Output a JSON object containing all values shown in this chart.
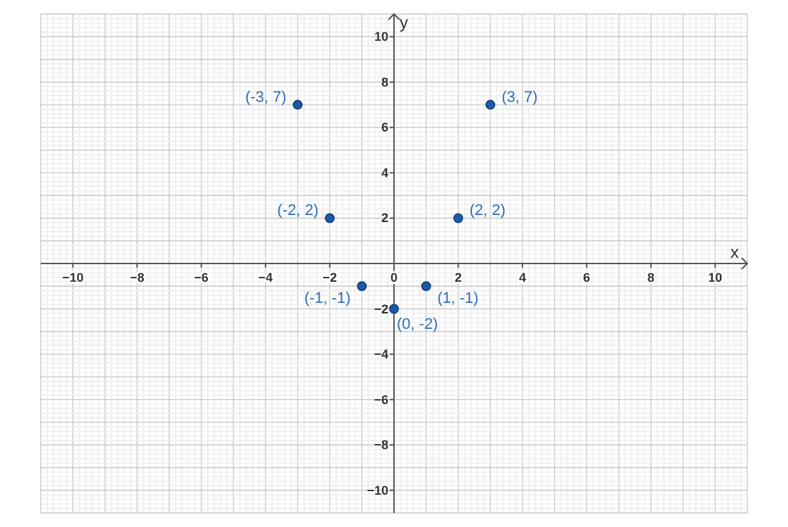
{
  "chart_data": {
    "type": "scatter",
    "xlabel": "x",
    "ylabel": "y",
    "x": [
      -3,
      3,
      -2,
      2,
      -1,
      1,
      0
    ],
    "values": [
      7,
      7,
      2,
      2,
      -1,
      -1,
      -2
    ],
    "value_labels": [
      "(-3, 7)",
      "(3, 7)",
      "(-2, 2)",
      "(2, 2)",
      "(-1, -1)",
      "(1, -1)",
      "(0, -2)"
    ],
    "color": "#1d5aa6",
    "marker": "circle",
    "xlim": [
      -11,
      11
    ],
    "ylim": [
      -11,
      11
    ],
    "xticks": [
      -10,
      -8,
      -6,
      -4,
      -2,
      0,
      2,
      4,
      6,
      8,
      10
    ],
    "yticks": [
      -10,
      -8,
      -6,
      -4,
      -2,
      2,
      4,
      6,
      8,
      10
    ],
    "grid": true
  }
}
